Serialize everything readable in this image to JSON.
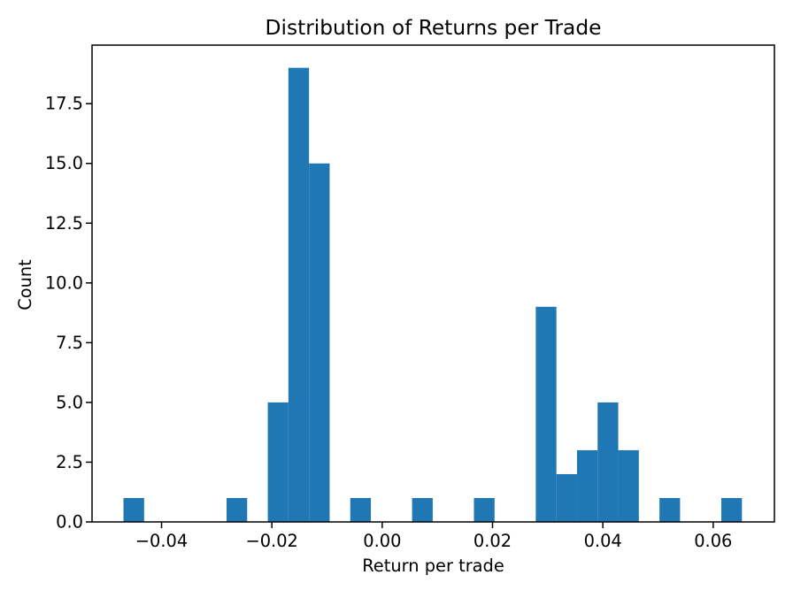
{
  "figure": {
    "background_color": "#ffffff"
  },
  "chart_data": {
    "type": "bar",
    "subtype": "histogram",
    "title": "Distribution of Returns per Trade",
    "xlabel": "Return per trade",
    "ylabel": "Count",
    "bar_color": "#1f77b4",
    "axis_color": "#000000",
    "grid": false,
    "bin_start": -0.0469,
    "bin_width": 0.003737,
    "counts": [
      1,
      0,
      0,
      0,
      0,
      1,
      0,
      5,
      19,
      15,
      0,
      1,
      0,
      0,
      1,
      0,
      0,
      1,
      0,
      0,
      9,
      2,
      3,
      5,
      3,
      0,
      1,
      0,
      0,
      1
    ],
    "total_trades": 68,
    "xlim": [
      -0.0526,
      0.0711
    ],
    "ylim": [
      0,
      19.95
    ],
    "xticks": [
      {
        "value": -0.04,
        "label": "−0.04"
      },
      {
        "value": -0.02,
        "label": "−0.02"
      },
      {
        "value": 0.0,
        "label": "0.00"
      },
      {
        "value": 0.02,
        "label": "0.02"
      },
      {
        "value": 0.04,
        "label": "0.04"
      },
      {
        "value": 0.06,
        "label": "0.06"
      }
    ],
    "yticks": [
      {
        "value": 0.0,
        "label": "0.0"
      },
      {
        "value": 2.5,
        "label": "2.5"
      },
      {
        "value": 5.0,
        "label": "5.0"
      },
      {
        "value": 7.5,
        "label": "7.5"
      },
      {
        "value": 10.0,
        "label": "10.0"
      },
      {
        "value": 12.5,
        "label": "12.5"
      },
      {
        "value": 15.0,
        "label": "15.0"
      },
      {
        "value": 17.5,
        "label": "17.5"
      }
    ]
  }
}
